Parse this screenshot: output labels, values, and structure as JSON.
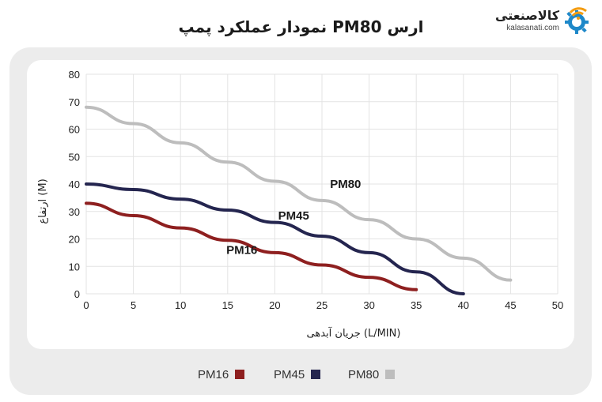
{
  "header": {
    "title": "نمودار عملکرد پمپ PM80 ارس"
  },
  "logo": {
    "name": "کالاصنعتی",
    "url": "kalasanati.com",
    "icon": "gear-wifi-icon"
  },
  "colors": {
    "PM16": "#8e1f1f",
    "PM45": "#24254f",
    "PM80": "#bdbdbd",
    "logo_orange": "#f39c12",
    "logo_blue": "#1e88c9"
  },
  "chart_data": {
    "type": "line",
    "title": "نمودار عملکرد پمپ PM80 ارس",
    "xlabel": "جریان آبدهی (L/MIN)",
    "ylabel": "ارتفاع (M)",
    "xlim": [
      0,
      50
    ],
    "ylim": [
      0,
      80
    ],
    "xticks": [
      0,
      5,
      10,
      15,
      20,
      25,
      30,
      35,
      40,
      45,
      50
    ],
    "yticks": [
      0,
      10,
      20,
      30,
      40,
      50,
      60,
      70,
      80
    ],
    "grid": true,
    "legend_position": "bottom",
    "series": [
      {
        "name": "PM16",
        "x": [
          0,
          5,
          10,
          15,
          20,
          25,
          30,
          35
        ],
        "y": [
          33,
          28.5,
          24,
          19.5,
          15,
          10.5,
          6,
          1.5
        ]
      },
      {
        "name": "PM45",
        "x": [
          0,
          5,
          10,
          15,
          20,
          25,
          30,
          35,
          40
        ],
        "y": [
          40,
          38,
          34.5,
          30.5,
          26,
          21,
          15,
          8,
          0
        ]
      },
      {
        "name": "PM80",
        "x": [
          0,
          5,
          10,
          15,
          20,
          25,
          30,
          35,
          40,
          45
        ],
        "y": [
          68,
          62,
          55,
          48,
          41,
          34,
          27,
          20,
          13,
          5
        ]
      }
    ],
    "annotations": [
      {
        "text": "PM80",
        "x": 27.5,
        "y": 38.5
      },
      {
        "text": "PM45",
        "x": 22,
        "y": 27
      },
      {
        "text": "PM16",
        "x": 16.5,
        "y": 14.5
      }
    ]
  },
  "legend": [
    {
      "label": "PM80",
      "color": "#bdbdbd"
    },
    {
      "label": "PM45",
      "color": "#24254f"
    },
    {
      "label": "PM16",
      "color": "#8e1f1f"
    }
  ]
}
